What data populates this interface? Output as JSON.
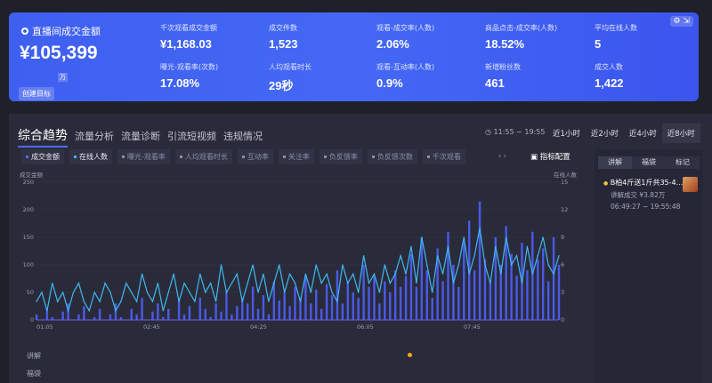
{
  "hero": {
    "title": "直播间成交金额",
    "amount": "¥105,399",
    "unit": "万",
    "goal_button": "创建目标",
    "metrics": [
      {
        "label": "千次观看成交金额",
        "value": "¥1,168.03"
      },
      {
        "label": "成交件数",
        "value": "1,523"
      },
      {
        "label": "观看-成交率(人数)",
        "value": "2.06%"
      },
      {
        "label": "商品点击-成交率(人数)",
        "value": "18.52%"
      },
      {
        "label": "平均在线人数",
        "value": "5"
      },
      {
        "label": "曝光-观看率(次数)",
        "value": "17.08%"
      },
      {
        "label": "人均观看时长",
        "value": "29秒"
      },
      {
        "label": "观看-互动率(人数)",
        "value": "0.9%"
      },
      {
        "label": "新增粉丝数",
        "value": "461"
      },
      {
        "label": "成交人数",
        "value": "1,422"
      }
    ],
    "settings_icon": "gear-icon"
  },
  "tabs": [
    "综合趋势",
    "流量分析",
    "流量诊断",
    "引流短视频",
    "违规情况"
  ],
  "time_range": "11:55 ~ 19:55",
  "range_buttons": [
    "近1小时",
    "近2小时",
    "近4小时",
    "近8小时"
  ],
  "active_range": "近8小时",
  "chips": [
    {
      "label": "成交金额",
      "on": true,
      "color": "#5b6cf0"
    },
    {
      "label": "在线人数",
      "on": true,
      "color": "#3fb8f0"
    },
    {
      "label": "曝光-观看率"
    },
    {
      "label": "人均观看时长"
    },
    {
      "label": "互动率"
    },
    {
      "label": "关注率"
    },
    {
      "label": "负反馈率"
    },
    {
      "label": "负反馈次数"
    },
    {
      "label": "千次观看"
    }
  ],
  "metric_config": "指标配置",
  "side": {
    "tabs": [
      "讲解",
      "福袋",
      "标记"
    ],
    "item": {
      "title": "B柏4斤送1斤共35-4...",
      "sub": "讲解成交 ¥3.82万",
      "time": "06:49:27 ~ 19:55:48"
    }
  },
  "rows": [
    "讲解",
    "福袋"
  ],
  "chart_data": {
    "type": "line",
    "x_ticks": [
      "01:05",
      "02:45",
      "04:25",
      "06:05",
      "07:45"
    ],
    "left_axis": {
      "label": "成交金额",
      "ticks": [
        0,
        50,
        100,
        150,
        200,
        250
      ],
      "ylim": [
        0,
        250
      ]
    },
    "right_axis": {
      "label": "在线人数",
      "ticks": [
        0,
        3,
        6,
        9,
        12,
        15
      ],
      "ylim": [
        0,
        15
      ]
    },
    "series": [
      {
        "name": "成交金额",
        "type": "bar",
        "color": "#4a5ae8",
        "values": [
          10,
          0,
          20,
          5,
          0,
          15,
          30,
          0,
          10,
          25,
          0,
          5,
          20,
          0,
          10,
          30,
          5,
          0,
          20,
          10,
          40,
          0,
          15,
          30,
          5,
          20,
          0,
          35,
          10,
          25,
          0,
          40,
          20,
          5,
          30,
          15,
          50,
          10,
          25,
          40,
          30,
          60,
          20,
          45,
          10,
          70,
          35,
          50,
          25,
          60,
          40,
          80,
          30,
          55,
          20,
          65,
          45,
          90,
          30,
          70,
          50,
          40,
          100,
          60,
          80,
          30,
          70,
          50,
          90,
          60,
          80,
          120,
          60,
          150,
          90,
          40,
          130,
          70,
          160,
          100,
          60,
          140,
          180,
          90,
          215,
          110,
          70,
          150,
          100,
          170,
          120,
          80,
          140,
          90,
          160,
          110,
          130,
          70,
          150,
          100
        ]
      },
      {
        "name": "在线人数",
        "type": "line",
        "color": "#3fb8f0",
        "values": [
          2,
          3,
          1,
          4,
          2,
          3,
          1,
          3,
          4,
          2,
          1,
          3,
          2,
          4,
          3,
          1,
          2,
          4,
          3,
          2,
          5,
          3,
          2,
          4,
          1,
          3,
          5,
          2,
          4,
          3,
          2,
          5,
          3,
          4,
          2,
          6,
          3,
          4,
          5,
          2,
          4,
          6,
          3,
          5,
          2,
          4,
          6,
          3,
          5,
          4,
          2,
          5,
          3,
          6,
          4,
          5,
          3,
          2,
          6,
          4,
          5,
          3,
          7,
          4,
          5,
          3,
          6,
          4,
          5,
          7,
          5,
          8,
          4,
          9,
          6,
          3,
          7,
          5,
          8,
          4,
          6,
          9,
          5,
          7,
          10,
          6,
          4,
          8,
          5,
          9,
          6,
          7,
          4,
          8,
          5,
          7,
          9,
          6,
          5,
          7
        ]
      }
    ]
  }
}
